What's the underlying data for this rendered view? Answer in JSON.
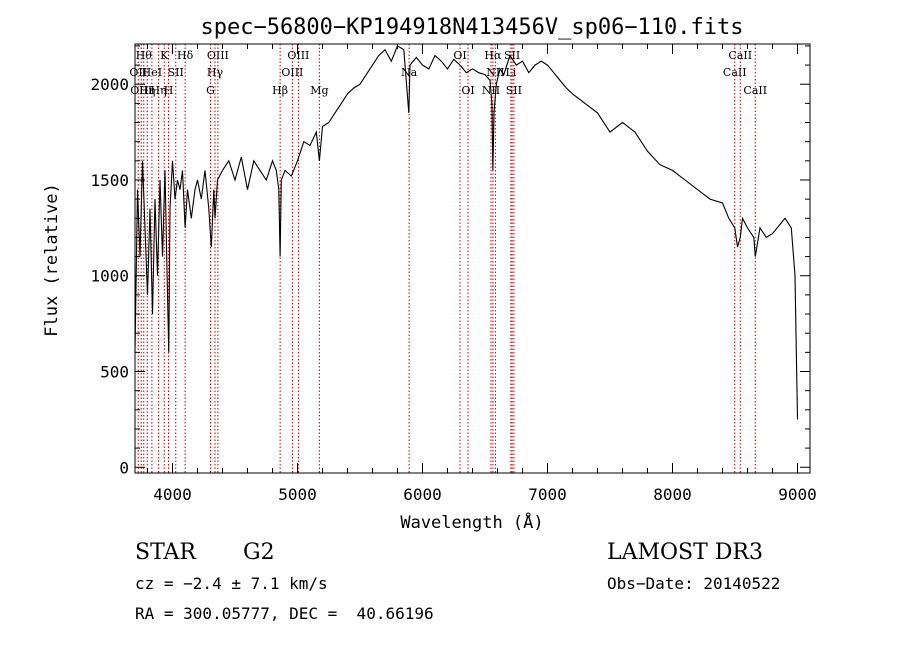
{
  "chart_data": {
    "type": "line",
    "title": "spec−56800−KP194918N413456V_sp06−110.fits",
    "xlabel": "Wavelength (Å)",
    "ylabel": "Flux (relative)",
    "xlim": [
      3700,
      9100
    ],
    "ylim": [
      -30,
      2210
    ],
    "x_ticks": [
      4000,
      5000,
      6000,
      7000,
      8000,
      9000
    ],
    "y_ticks": [
      0,
      500,
      1000,
      1500,
      2000
    ],
    "line_color": "#000000",
    "marker_color": "#cc0000",
    "series": [
      {
        "name": "flux",
        "x": [
          3700,
          3720,
          3740,
          3760,
          3780,
          3800,
          3820,
          3840,
          3860,
          3880,
          3900,
          3920,
          3940,
          3960,
          3970,
          3980,
          4000,
          4020,
          4040,
          4060,
          4080,
          4101,
          4120,
          4150,
          4180,
          4200,
          4230,
          4260,
          4290,
          4310,
          4330,
          4340,
          4360,
          4400,
          4450,
          4500,
          4550,
          4600,
          4650,
          4700,
          4750,
          4800,
          4830,
          4850,
          4861,
          4870,
          4900,
          4950,
          5000,
          5050,
          5100,
          5150,
          5175,
          5200,
          5250,
          5300,
          5350,
          5400,
          5450,
          5500,
          5550,
          5600,
          5650,
          5700,
          5750,
          5800,
          5850,
          5890,
          5900,
          5950,
          6000,
          6050,
          6100,
          6150,
          6200,
          6250,
          6300,
          6350,
          6400,
          6450,
          6500,
          6540,
          6555,
          6563,
          6572,
          6590,
          6620,
          6650,
          6700,
          6750,
          6800,
          6850,
          6900,
          6950,
          7000,
          7050,
          7100,
          7150,
          7200,
          7300,
          7400,
          7500,
          7600,
          7700,
          7800,
          7900,
          8000,
          8100,
          8200,
          8300,
          8400,
          8450,
          8498,
          8520,
          8542,
          8560,
          8600,
          8650,
          8662,
          8700,
          8750,
          8800,
          8850,
          8900,
          8950,
          8980,
          9000
        ],
        "y": [
          600,
          1450,
          1100,
          1600,
          1250,
          900,
          1350,
          800,
          1400,
          1000,
          1500,
          1100,
          1550,
          900,
          600,
          1350,
          1600,
          1400,
          1500,
          1450,
          1550,
          1250,
          1450,
          1300,
          1450,
          1500,
          1400,
          1550,
          1350,
          1150,
          1450,
          1300,
          1500,
          1550,
          1600,
          1500,
          1620,
          1450,
          1600,
          1550,
          1500,
          1600,
          1550,
          1450,
          1100,
          1500,
          1550,
          1520,
          1600,
          1700,
          1680,
          1750,
          1600,
          1780,
          1800,
          1850,
          1900,
          1950,
          1980,
          2000,
          2050,
          2100,
          2150,
          2180,
          2120,
          2200,
          2180,
          1850,
          2100,
          2140,
          2100,
          2080,
          2150,
          2120,
          2080,
          2130,
          2100,
          2060,
          2080,
          2060,
          2050,
          2020,
          1900,
          1550,
          1850,
          2000,
          2080,
          2050,
          2150,
          2100,
          2120,
          2060,
          2100,
          2120,
          2100,
          2060,
          2020,
          1980,
          1950,
          1900,
          1850,
          1750,
          1800,
          1750,
          1650,
          1580,
          1550,
          1500,
          1450,
          1400,
          1380,
          1300,
          1250,
          1150,
          1200,
          1300,
          1250,
          1200,
          1100,
          1250,
          1200,
          1220,
          1260,
          1300,
          1250,
          1000,
          250
        ]
      }
    ],
    "lines": [
      {
        "wl": 3726,
        "label": "OII",
        "row": 1
      },
      {
        "wl": 3750,
        "label": "OIII",
        "row": 2
      },
      {
        "wl": 3770,
        "label": "Hθ",
        "row": 0
      },
      {
        "wl": 3798,
        "label": "Hη",
        "row": 2
      },
      {
        "wl": 3835,
        "label": "HeI",
        "row": 1
      },
      {
        "wl": 3889,
        "label": "Hη",
        "row": 2
      },
      {
        "wl": 3934,
        "label": "K",
        "row": 0
      },
      {
        "wl": 3968,
        "label": "H",
        "row": 2
      },
      {
        "wl": 4026,
        "label": "SII",
        "row": 1
      },
      {
        "wl": 4101,
        "label": "Hδ",
        "row": 0
      },
      {
        "wl": 4304,
        "label": "G",
        "row": 2
      },
      {
        "wl": 4340,
        "label": "Hγ",
        "row": 1
      },
      {
        "wl": 4363,
        "label": "OIII",
        "row": 0
      },
      {
        "wl": 4861,
        "label": "Hβ",
        "row": 2
      },
      {
        "wl": 4959,
        "label": "OIII",
        "row": 1
      },
      {
        "wl": 5007,
        "label": "OIII",
        "row": 0
      },
      {
        "wl": 5175,
        "label": "Mg",
        "row": 2
      },
      {
        "wl": 5893,
        "label": "Na",
        "row": 1
      },
      {
        "wl": 6300,
        "label": "OI",
        "row": 0
      },
      {
        "wl": 6364,
        "label": "OI",
        "row": 2
      },
      {
        "wl": 6548,
        "label": "NII",
        "row": 2
      },
      {
        "wl": 6563,
        "label": "Hα",
        "row": 0
      },
      {
        "wl": 6583,
        "label": "NII",
        "row": 1
      },
      {
        "wl": 6707,
        "label": "Li",
        "row": 1
      },
      {
        "wl": 6717,
        "label": "SII",
        "row": 0
      },
      {
        "wl": 6731,
        "label": "SII",
        "row": 2
      },
      {
        "wl": 8498,
        "label": "CaII",
        "row": 1
      },
      {
        "wl": 8542,
        "label": "CaII",
        "row": 0
      },
      {
        "wl": 8662,
        "label": "CaII",
        "row": 2
      }
    ]
  },
  "info": {
    "object_type": "STAR",
    "subclass": "G2",
    "survey": "LAMOST DR3",
    "cz": "cz = −2.4 ± 7.1 km/s",
    "obs_date": "Obs−Date: 20140522",
    "coords": "RA = 300.05777, DEC =  40.66196"
  }
}
